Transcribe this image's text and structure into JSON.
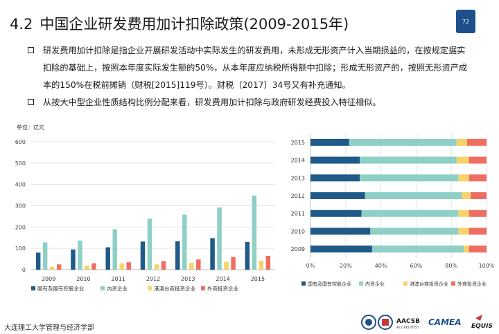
{
  "slide": {
    "number": "4.2",
    "title": "中国企业研发费用加计扣除政策(2009-2015年)",
    "page_number": "72",
    "bullets": [
      "研发费用加计扣除是指企业开展研发活动中实际发生的研发费用，未形成无形资产计入当期损益的，在按规定据实扣除的基础上，按照本年度实际发生额的50%，从本年度应纳税所得额中扣除；形成无形资产的，按照无形资产成本的150%在税前摊销（财税[2015]119号）。财税〔2017〕34号又有补充通知。",
      "从按大中型企业性质结构比例分配来看，研发费用加计扣除与政府研发经费投入特征相似。"
    ],
    "footer": "大连理工大学管理与经济学部",
    "logos": {
      "aacsb_top": "AACSB",
      "aacsb_bottom": "ACCREDITED",
      "camea": "CAMEA",
      "equis": "EQUIS"
    }
  },
  "colors": {
    "state": "#1f5a89",
    "domestic": "#8fd0c6",
    "hk_macao_taiwan": "#f6d46b",
    "foreign": "#ee6f62",
    "badge": "#1e4f8a"
  },
  "chart_data": [
    {
      "type": "bar",
      "unit_label": "单位：亿元",
      "categories": [
        "2009",
        "2010",
        "2011",
        "2012",
        "2013",
        "2014",
        "2015"
      ],
      "ylim": [
        0,
        600
      ],
      "yticks": [
        "0",
        "100",
        "200",
        "300",
        "400",
        "500",
        "600"
      ],
      "grid": true,
      "legend_position": "bottom",
      "series": [
        {
          "name": "国有及国有控股企业",
          "values": [
            80,
            95,
            105,
            132,
            133,
            148,
            130
          ]
        },
        {
          "name": "内资企业",
          "values": [
            128,
            137,
            190,
            240,
            258,
            292,
            348
          ]
        },
        {
          "name": "港澳台商投资企业",
          "values": [
            14,
            20,
            30,
            25,
            32,
            37,
            42
          ]
        },
        {
          "name": "外商投资企业",
          "values": [
            25,
            30,
            35,
            40,
            48,
            60,
            65
          ]
        }
      ]
    },
    {
      "type": "bar",
      "orientation": "horizontal",
      "stacked": "percent",
      "categories": [
        "2015",
        "2014",
        "2013",
        "2012",
        "2011",
        "2010",
        "2009"
      ],
      "xticks": [
        "0%",
        "20%",
        "40%",
        "60%",
        "80%",
        "100%"
      ],
      "xlim": [
        0,
        100
      ],
      "grid": true,
      "legend_position": "bottom",
      "series": [
        {
          "name": "国有及国有控股企业",
          "values": [
            22,
            28,
            28,
            31,
            29,
            34,
            35
          ]
        },
        {
          "name": "内资企业",
          "values": [
            61,
            55,
            56,
            55,
            55,
            50,
            52
          ]
        },
        {
          "name": "港澳台商投资企业",
          "values": [
            6,
            7,
            6,
            5,
            6,
            6,
            3
          ]
        },
        {
          "name": "外商投资企业",
          "values": [
            11,
            10,
            10,
            9,
            10,
            10,
            10
          ]
        }
      ]
    }
  ]
}
